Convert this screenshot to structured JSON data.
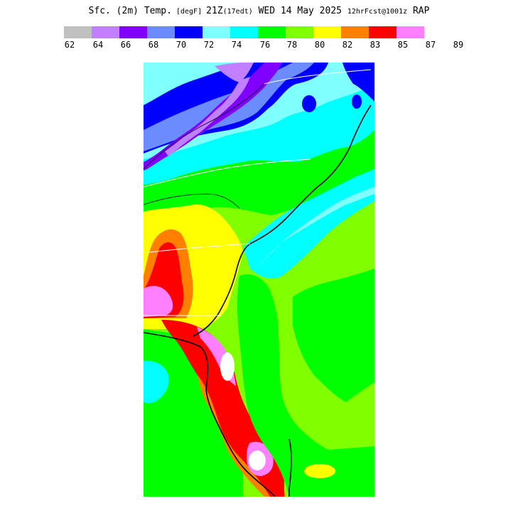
{
  "title": {
    "parts": [
      {
        "text": "Sfc. (2m) Temp.",
        "size": "main"
      },
      {
        "text": " [degF] ",
        "size": "small"
      },
      {
        "text": "21Z",
        "size": "main"
      },
      {
        "text": "(17edt)",
        "size": "small"
      },
      {
        "text": " WED 14 May 2025 ",
        "size": "main"
      },
      {
        "text": "12hrFcst@1001z",
        "size": "small"
      },
      {
        "text": " RAP",
        "size": "main"
      }
    ]
  },
  "colorbar": {
    "colors": [
      "#c0c0c0",
      "#c080ff",
      "#8000ff",
      "#6a8cff",
      "#0000ff",
      "#80ffff",
      "#00ffff",
      "#00ff00",
      "#80ff00",
      "#ffff00",
      "#ff8000",
      "#ff0000",
      "#ff80ff"
    ],
    "ticks": [
      "62",
      "64",
      "66",
      "68",
      "70",
      "72",
      "74",
      "76",
      "78",
      "80",
      "82",
      "83",
      "85",
      "87",
      "89"
    ]
  },
  "map": {
    "variable": "2 m temperature",
    "palette": {
      "lavender": "#c080ff",
      "purple": "#8000ff",
      "periwinkle": "#6a8cff",
      "blue": "#0000ff",
      "lightcyan": "#80ffff",
      "cyan": "#00ffff",
      "green": "#00ff00",
      "lime": "#80ff00",
      "yellow": "#ffff00",
      "orange": "#ff8000",
      "red": "#ff0000",
      "pink": "#ff80ff",
      "white": "#ffffff"
    }
  }
}
